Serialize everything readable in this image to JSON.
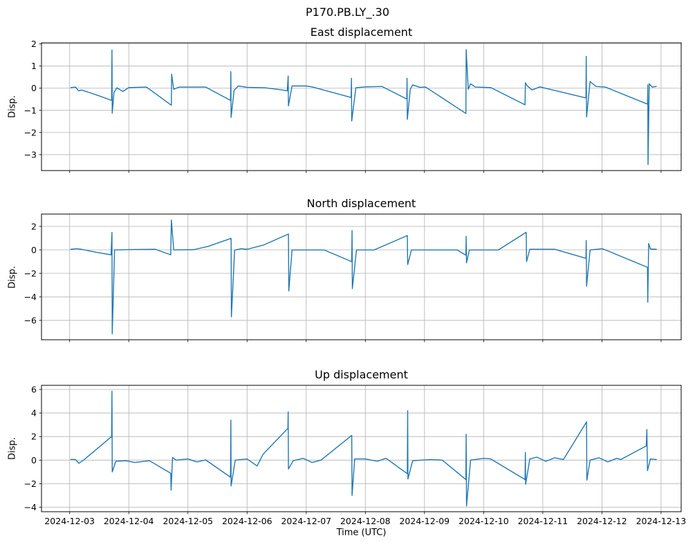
{
  "figure": {
    "suptitle": "P170.PB.LY_.30",
    "xlabel": "Time (UTC)",
    "colors": {
      "line": "#1f77b4",
      "grid": "#b0b0b0",
      "spine": "#000000",
      "background": "#ffffff",
      "text": "#000000"
    },
    "x_unit": "days since 2024-12-03 00:00 UTC",
    "xlim_days": [
      -0.476,
      10.34
    ],
    "x_tick_positions": [
      0,
      1,
      2,
      3,
      4,
      5,
      6,
      7,
      8,
      9,
      10
    ],
    "x_tick_labels": [
      "2024-12-03",
      "2024-12-04",
      "2024-12-05",
      "2024-12-06",
      "2024-12-07",
      "2024-12-08",
      "2024-12-09",
      "2024-12-10",
      "2024-12-11",
      "2024-12-12",
      "2024-12-13"
    ]
  },
  "chart_data": [
    {
      "id": "east",
      "type": "line",
      "title": "East displacement",
      "ylabel": "Disp.",
      "grid": true,
      "legend": "none",
      "yticks": [
        2,
        1,
        0,
        -1,
        -2,
        -3
      ],
      "ylim": [
        -3.72,
        2.05
      ],
      "points": [
        [
          0.02,
          0.03
        ],
        [
          0.1,
          0.05
        ],
        [
          0.15,
          -0.12
        ],
        [
          0.2,
          -0.08
        ],
        [
          0.45,
          -0.3
        ],
        [
          0.71,
          -0.55
        ],
        [
          0.715,
          1.73
        ],
        [
          0.72,
          -1.13
        ],
        [
          0.75,
          -0.2
        ],
        [
          0.8,
          0.02
        ],
        [
          0.9,
          -0.15
        ],
        [
          1.0,
          0.03
        ],
        [
          1.3,
          0.05
        ],
        [
          1.72,
          -0.77
        ],
        [
          1.725,
          0.63
        ],
        [
          1.76,
          -0.05
        ],
        [
          1.85,
          0.05
        ],
        [
          2.3,
          0.05
        ],
        [
          2.72,
          -0.55
        ],
        [
          2.725,
          0.75
        ],
        [
          2.73,
          -1.32
        ],
        [
          2.78,
          -0.1
        ],
        [
          2.85,
          0.1
        ],
        [
          3.0,
          0.04
        ],
        [
          3.3,
          0.02
        ],
        [
          3.6,
          -0.08
        ],
        [
          3.68,
          -0.12
        ],
        [
          3.695,
          0.55
        ],
        [
          3.7,
          -0.8
        ],
        [
          3.76,
          0.1
        ],
        [
          4.0,
          0.1
        ],
        [
          4.1,
          0.06
        ],
        [
          4.76,
          -0.42
        ],
        [
          4.765,
          0.45
        ],
        [
          4.77,
          -1.48
        ],
        [
          4.84,
          0.02
        ],
        [
          5.0,
          0.06
        ],
        [
          5.28,
          0.08
        ],
        [
          5.7,
          -0.49
        ],
        [
          5.705,
          0.45
        ],
        [
          5.71,
          -1.41
        ],
        [
          5.76,
          -0.05
        ],
        [
          5.8,
          0.15
        ],
        [
          5.92,
          0.04
        ],
        [
          6.02,
          0.05
        ],
        [
          6.7,
          -1.14
        ],
        [
          6.705,
          1.74
        ],
        [
          6.74,
          -0.05
        ],
        [
          6.78,
          0.2
        ],
        [
          6.86,
          0.05
        ],
        [
          7.12,
          0.03
        ],
        [
          7.7,
          -0.75
        ],
        [
          7.705,
          0.24
        ],
        [
          7.74,
          0.1
        ],
        [
          7.82,
          -0.08
        ],
        [
          7.95,
          0.06
        ],
        [
          8.73,
          -0.44
        ],
        [
          8.735,
          1.44
        ],
        [
          8.74,
          -1.3
        ],
        [
          8.8,
          0.3
        ],
        [
          8.9,
          0.08
        ],
        [
          9.06,
          0.05
        ],
        [
          9.77,
          -0.72
        ],
        [
          9.775,
          0.15
        ],
        [
          9.78,
          -3.45
        ],
        [
          9.8,
          0.2
        ],
        [
          9.85,
          0.05
        ],
        [
          9.92,
          0.08
        ]
      ]
    },
    {
      "id": "north",
      "type": "line",
      "title": "North displacement",
      "ylabel": "Disp.",
      "grid": true,
      "legend": "none",
      "yticks": [
        2,
        0,
        -2,
        -4,
        -6
      ],
      "ylim": [
        -7.65,
        3.05
      ],
      "points": [
        [
          0.02,
          0.05
        ],
        [
          0.12,
          0.1
        ],
        [
          0.2,
          0.05
        ],
        [
          0.45,
          -0.2
        ],
        [
          0.7,
          -0.42
        ],
        [
          0.715,
          1.5
        ],
        [
          0.72,
          -7.15
        ],
        [
          0.76,
          0.0
        ],
        [
          1.0,
          0.03
        ],
        [
          1.45,
          0.05
        ],
        [
          1.71,
          -0.42
        ],
        [
          1.72,
          2.55
        ],
        [
          1.76,
          0.0
        ],
        [
          2.1,
          0.02
        ],
        [
          2.34,
          0.3
        ],
        [
          2.73,
          0.98
        ],
        [
          2.735,
          -5.7
        ],
        [
          2.79,
          -0.02
        ],
        [
          2.9,
          0.1
        ],
        [
          3.0,
          0.05
        ],
        [
          3.27,
          0.4
        ],
        [
          3.7,
          1.35
        ],
        [
          3.705,
          -3.5
        ],
        [
          3.76,
          0.0
        ],
        [
          4.3,
          0.0
        ],
        [
          4.77,
          -1.0
        ],
        [
          4.775,
          1.65
        ],
        [
          4.78,
          -3.3
        ],
        [
          4.85,
          0.0
        ],
        [
          5.15,
          0.0
        ],
        [
          5.71,
          1.22
        ],
        [
          5.715,
          -1.25
        ],
        [
          5.78,
          0.0
        ],
        [
          6.55,
          0.0
        ],
        [
          6.7,
          -0.45
        ],
        [
          6.705,
          1.15
        ],
        [
          6.71,
          -1.1
        ],
        [
          6.76,
          0.0
        ],
        [
          7.25,
          0.0
        ],
        [
          7.72,
          1.5
        ],
        [
          7.725,
          -1.0
        ],
        [
          7.78,
          0.06
        ],
        [
          8.2,
          0.06
        ],
        [
          8.73,
          -0.72
        ],
        [
          8.735,
          0.8
        ],
        [
          8.74,
          -3.1
        ],
        [
          8.8,
          0.0
        ],
        [
          9.0,
          0.1
        ],
        [
          9.06,
          0.0
        ],
        [
          9.77,
          -1.48
        ],
        [
          9.775,
          -4.45
        ],
        [
          9.79,
          0.55
        ],
        [
          9.82,
          0.08
        ],
        [
          9.92,
          0.05
        ]
      ]
    },
    {
      "id": "up",
      "type": "line",
      "title": "Up displacement",
      "ylabel": "Disp.",
      "grid": true,
      "legend": "none",
      "yticks": [
        6,
        4,
        2,
        0,
        -2,
        -4
      ],
      "ylim": [
        -4.38,
        6.35
      ],
      "points": [
        [
          0.02,
          0.06
        ],
        [
          0.1,
          0.05
        ],
        [
          0.155,
          -0.27
        ],
        [
          0.23,
          -0.02
        ],
        [
          0.71,
          2.0
        ],
        [
          0.715,
          5.85
        ],
        [
          0.72,
          -1.0
        ],
        [
          0.78,
          -0.1
        ],
        [
          0.95,
          -0.05
        ],
        [
          1.1,
          -0.2
        ],
        [
          1.35,
          -0.05
        ],
        [
          1.71,
          -1.12
        ],
        [
          1.715,
          -2.55
        ],
        [
          1.74,
          0.23
        ],
        [
          1.8,
          0.0
        ],
        [
          2.0,
          0.1
        ],
        [
          2.15,
          -0.15
        ],
        [
          2.3,
          0.02
        ],
        [
          2.72,
          -1.45
        ],
        [
          2.725,
          3.4
        ],
        [
          2.73,
          -2.2
        ],
        [
          2.8,
          0.0
        ],
        [
          3.0,
          0.1
        ],
        [
          3.17,
          -0.5
        ],
        [
          3.27,
          0.5
        ],
        [
          3.69,
          2.7
        ],
        [
          3.695,
          4.1
        ],
        [
          3.7,
          -0.75
        ],
        [
          3.78,
          -0.05
        ],
        [
          3.95,
          0.15
        ],
        [
          4.1,
          -0.2
        ],
        [
          4.25,
          0.0
        ],
        [
          4.77,
          2.1
        ],
        [
          4.775,
          -3.0
        ],
        [
          4.82,
          0.1
        ],
        [
          5.0,
          0.1
        ],
        [
          5.2,
          -0.1
        ],
        [
          5.35,
          0.15
        ],
        [
          5.71,
          -1.15
        ],
        [
          5.715,
          4.2
        ],
        [
          5.72,
          -1.6
        ],
        [
          5.8,
          -0.05
        ],
        [
          6.1,
          0.05
        ],
        [
          6.3,
          0.0
        ],
        [
          6.7,
          -1.65
        ],
        [
          6.705,
          2.2
        ],
        [
          6.71,
          -3.9
        ],
        [
          6.78,
          0.0
        ],
        [
          7.0,
          0.15
        ],
        [
          7.12,
          0.1
        ],
        [
          7.7,
          -1.65
        ],
        [
          7.705,
          0.65
        ],
        [
          7.71,
          -2.05
        ],
        [
          7.78,
          0.1
        ],
        [
          7.9,
          0.25
        ],
        [
          8.05,
          -0.1
        ],
        [
          8.2,
          0.2
        ],
        [
          8.35,
          0.05
        ],
        [
          8.74,
          3.25
        ],
        [
          8.745,
          -1.7
        ],
        [
          8.8,
          0.0
        ],
        [
          8.95,
          0.2
        ],
        [
          9.1,
          -0.15
        ],
        [
          9.25,
          0.15
        ],
        [
          9.32,
          0.05
        ],
        [
          9.75,
          1.2
        ],
        [
          9.76,
          2.6
        ],
        [
          9.77,
          -0.9
        ],
        [
          9.82,
          0.1
        ],
        [
          9.92,
          0.05
        ]
      ]
    }
  ]
}
